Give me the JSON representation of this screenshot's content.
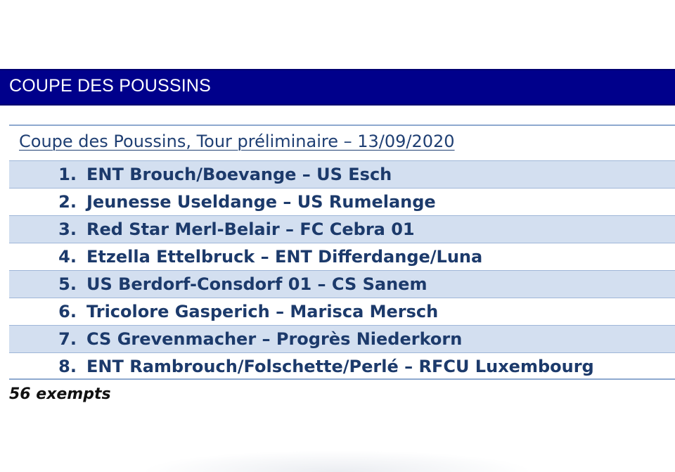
{
  "header": {
    "title": "COUPE DES POUSSINS"
  },
  "section": {
    "caption": "Coupe des Poussins, Tour préliminaire – 13/09/2020",
    "matches": [
      {
        "number": "1.",
        "text": "ENT Brouch/Boevange – US Esch"
      },
      {
        "number": "2.",
        "text": "Jeunesse Useldange – US Rumelange"
      },
      {
        "number": "3.",
        "text": "Red Star Merl-Belair – FC Cebra 01"
      },
      {
        "number": "4.",
        "text": "Etzella Ettelbruck – ENT Differdange/Luna"
      },
      {
        "number": "5.",
        "text": "US Berdorf-Consdorf 01 – CS Sanem"
      },
      {
        "number": "6.",
        "text": "Tricolore Gasperich – Marisca Mersch"
      },
      {
        "number": "7.",
        "text": "CS Grevenmacher – Progrès Niederkorn"
      },
      {
        "number": "8.",
        "text": "ENT Rambrouch/Folschette/Perlé – RFCU Luxembourg"
      }
    ]
  },
  "footer": {
    "note": "56 exempts"
  },
  "colors": {
    "header_bg": "#00008b",
    "row_shade": "#d3dff0",
    "text": "#1c3a6b"
  }
}
